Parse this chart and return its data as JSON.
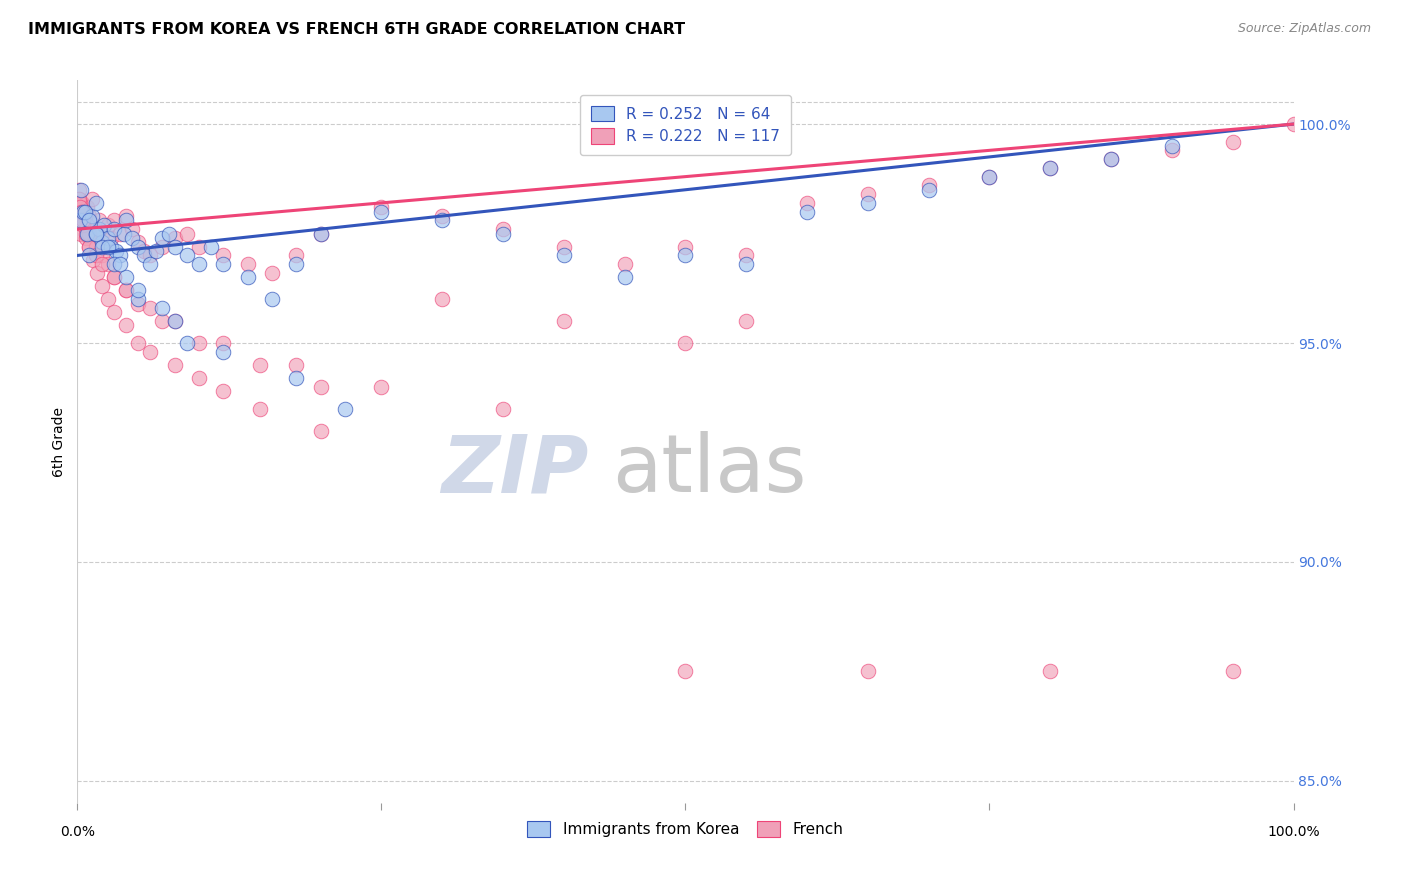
{
  "title": "IMMIGRANTS FROM KOREA VS FRENCH 6TH GRADE CORRELATION CHART",
  "source": "Source: ZipAtlas.com",
  "ylabel": "6th Grade",
  "legend_blue_label": "Immigrants from Korea",
  "legend_pink_label": "French",
  "legend_blue_R": "R = 0.252",
  "legend_blue_N": "N = 64",
  "legend_pink_R": "R = 0.222",
  "legend_pink_N": "N = 117",
  "color_blue": "#A8C8F0",
  "color_pink": "#F0A0B8",
  "color_blue_line": "#3355BB",
  "color_pink_line": "#EE4477",
  "blue_x": [
    0.2,
    0.5,
    0.8,
    1.2,
    1.5,
    1.8,
    2.0,
    2.2,
    2.5,
    2.8,
    3.0,
    3.2,
    3.5,
    3.8,
    4.0,
    4.5,
    5.0,
    5.5,
    6.0,
    6.5,
    7.0,
    7.5,
    8.0,
    9.0,
    10.0,
    11.0,
    12.0,
    14.0,
    16.0,
    18.0,
    20.0,
    25.0,
    30.0,
    35.0,
    40.0,
    45.0,
    50.0,
    55.0,
    60.0,
    65.0,
    70.0,
    75.0,
    80.0,
    85.0,
    90.0,
    1.0,
    1.5,
    2.0,
    3.0,
    4.0,
    5.0,
    7.0,
    9.0,
    12.0,
    18.0,
    22.0,
    0.3,
    0.6,
    1.0,
    1.5,
    2.5,
    3.5,
    5.0,
    8.0
  ],
  "blue_y": [
    97.8,
    98.0,
    97.5,
    97.9,
    98.2,
    97.6,
    97.3,
    97.7,
    97.4,
    97.2,
    97.6,
    97.1,
    97.0,
    97.5,
    97.8,
    97.4,
    97.2,
    97.0,
    96.8,
    97.1,
    97.4,
    97.5,
    97.2,
    97.0,
    96.8,
    97.2,
    96.8,
    96.5,
    96.0,
    96.8,
    97.5,
    98.0,
    97.8,
    97.5,
    97.0,
    96.5,
    97.0,
    96.8,
    98.0,
    98.2,
    98.5,
    98.8,
    99.0,
    99.2,
    99.5,
    97.0,
    97.5,
    97.2,
    96.8,
    96.5,
    96.0,
    95.8,
    95.0,
    94.8,
    94.2,
    93.5,
    98.5,
    98.0,
    97.8,
    97.5,
    97.2,
    96.8,
    96.2,
    95.5
  ],
  "pink_x": [
    0.2,
    0.4,
    0.6,
    0.8,
    1.0,
    1.2,
    1.5,
    1.8,
    2.0,
    2.2,
    2.5,
    2.8,
    3.0,
    3.5,
    4.0,
    4.5,
    5.0,
    5.5,
    6.0,
    7.0,
    8.0,
    9.0,
    10.0,
    12.0,
    14.0,
    16.0,
    18.0,
    20.0,
    25.0,
    30.0,
    35.0,
    40.0,
    45.0,
    50.0,
    55.0,
    60.0,
    65.0,
    70.0,
    75.0,
    80.0,
    85.0,
    90.0,
    95.0,
    100.0,
    0.3,
    0.5,
    0.7,
    1.0,
    1.3,
    1.6,
    2.0,
    2.5,
    3.0,
    4.0,
    5.0,
    6.0,
    8.0,
    10.0,
    12.0,
    15.0,
    20.0,
    0.2,
    0.4,
    0.6,
    0.8,
    1.0,
    1.5,
    2.0,
    2.5,
    3.0,
    4.0,
    5.0,
    7.0,
    10.0,
    15.0,
    20.0,
    0.1,
    0.15,
    0.25,
    0.35,
    0.5,
    0.7,
    1.0,
    1.5,
    2.0,
    3.0,
    4.0,
    6.0,
    8.0,
    12.0,
    18.0,
    25.0,
    35.0,
    50.0,
    65.0,
    80.0,
    95.0,
    0.3,
    0.5,
    30.0,
    40.0,
    50.0,
    55.0
  ],
  "pink_y": [
    98.0,
    98.2,
    97.8,
    98.1,
    97.9,
    98.3,
    97.6,
    97.8,
    97.5,
    97.2,
    97.7,
    97.4,
    97.8,
    97.5,
    97.9,
    97.6,
    97.3,
    97.1,
    97.0,
    97.2,
    97.4,
    97.5,
    97.2,
    97.0,
    96.8,
    96.6,
    97.0,
    97.5,
    98.1,
    97.9,
    97.6,
    97.2,
    96.8,
    97.2,
    97.0,
    98.2,
    98.4,
    98.6,
    98.8,
    99.0,
    99.2,
    99.4,
    99.6,
    100.0,
    97.5,
    97.8,
    97.4,
    97.2,
    96.9,
    96.6,
    96.3,
    96.0,
    95.7,
    95.4,
    95.0,
    94.8,
    94.5,
    94.2,
    93.9,
    93.5,
    93.0,
    98.2,
    98.0,
    97.9,
    97.7,
    97.5,
    97.2,
    97.0,
    96.8,
    96.5,
    96.2,
    95.9,
    95.5,
    95.0,
    94.5,
    94.0,
    98.5,
    98.3,
    98.1,
    97.9,
    97.7,
    97.5,
    97.2,
    97.0,
    96.8,
    96.5,
    96.2,
    95.8,
    95.5,
    95.0,
    94.5,
    94.0,
    93.5,
    87.5,
    87.5,
    87.5,
    87.5,
    98.0,
    97.8,
    96.0,
    95.5,
    95.0,
    95.5
  ],
  "xlim": [
    0.0,
    100.0
  ],
  "ylim": [
    84.5,
    101.0
  ],
  "y_ticks": [
    85.0,
    90.0,
    95.0,
    100.0
  ],
  "y_tick_labels": [
    "85.0%",
    "90.0%",
    "95.0%",
    "100.0%"
  ],
  "x_tick_positions": [
    0,
    25,
    50,
    75,
    100
  ],
  "background_color": "#ffffff",
  "grid_color": "#cccccc",
  "watermark_zip_color": "#D0D8E8",
  "watermark_atlas_color": "#C8C8C8"
}
